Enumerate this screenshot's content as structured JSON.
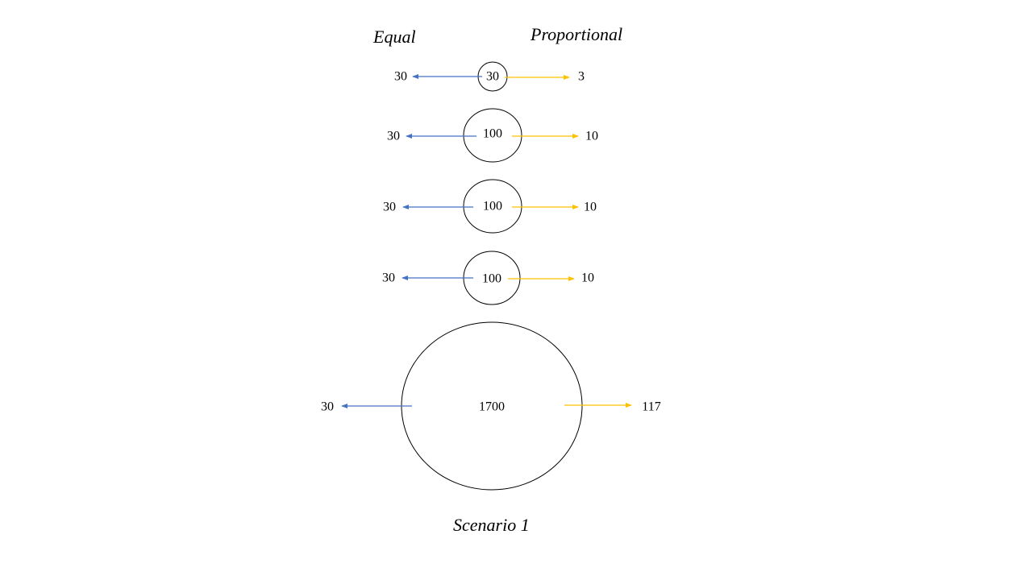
{
  "headings": {
    "equal": "Equal",
    "proportional": "Proportional"
  },
  "caption": "Scenario 1",
  "colors": {
    "equal_arrow": "#4472C4",
    "proportional_arrow": "#FFC000",
    "outline": "#000000"
  },
  "nodes": [
    {
      "value": "30",
      "equal": "30",
      "proportional": "3"
    },
    {
      "value": "100",
      "equal": "30",
      "proportional": "10"
    },
    {
      "value": "100",
      "equal": "30",
      "proportional": "10"
    },
    {
      "value": "100",
      "equal": "30",
      "proportional": "10"
    },
    {
      "value": "1700",
      "equal": "30",
      "proportional": "117"
    }
  ]
}
